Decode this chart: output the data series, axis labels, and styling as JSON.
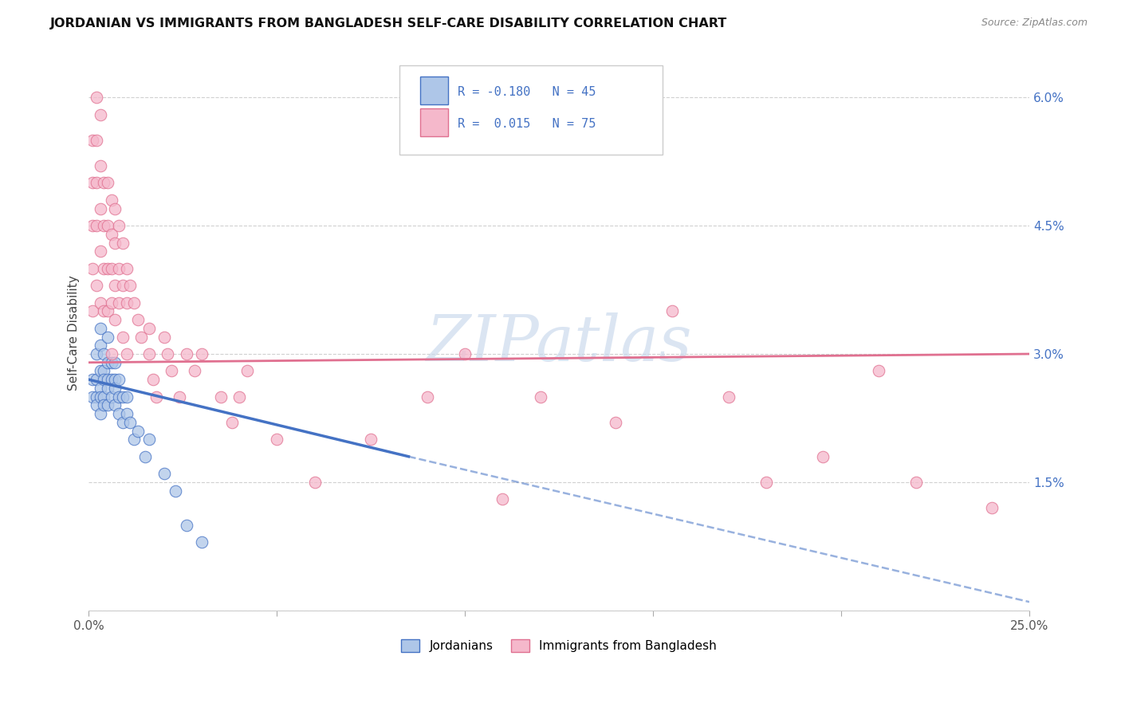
{
  "title": "JORDANIAN VS IMMIGRANTS FROM BANGLADESH SELF-CARE DISABILITY CORRELATION CHART",
  "source": "Source: ZipAtlas.com",
  "ylabel": "Self-Care Disability",
  "watermark": "ZIPatlas",
  "legend": {
    "jordan": {
      "R": -0.18,
      "N": 45,
      "color": "#aec6e8",
      "line_color": "#4472c4"
    },
    "bangladesh": {
      "R": 0.015,
      "N": 75,
      "color": "#f5b8cb",
      "line_color": "#e07090"
    }
  },
  "right_yticks": [
    0.0,
    0.015,
    0.03,
    0.045,
    0.06
  ],
  "right_ytick_labels": [
    "",
    "1.5%",
    "3.0%",
    "4.5%",
    "6.0%"
  ],
  "xlim": [
    0.0,
    0.25
  ],
  "ylim": [
    0.0,
    0.065
  ],
  "jordanians_x": [
    0.001,
    0.001,
    0.002,
    0.002,
    0.002,
    0.002,
    0.003,
    0.003,
    0.003,
    0.003,
    0.003,
    0.003,
    0.004,
    0.004,
    0.004,
    0.004,
    0.004,
    0.005,
    0.005,
    0.005,
    0.005,
    0.005,
    0.006,
    0.006,
    0.006,
    0.007,
    0.007,
    0.007,
    0.007,
    0.008,
    0.008,
    0.008,
    0.009,
    0.009,
    0.01,
    0.01,
    0.011,
    0.012,
    0.013,
    0.015,
    0.016,
    0.02,
    0.023,
    0.026,
    0.03
  ],
  "jordanians_y": [
    0.027,
    0.025,
    0.03,
    0.027,
    0.025,
    0.024,
    0.033,
    0.031,
    0.028,
    0.026,
    0.025,
    0.023,
    0.03,
    0.028,
    0.027,
    0.025,
    0.024,
    0.032,
    0.029,
    0.027,
    0.026,
    0.024,
    0.029,
    0.027,
    0.025,
    0.029,
    0.027,
    0.026,
    0.024,
    0.027,
    0.025,
    0.023,
    0.025,
    0.022,
    0.025,
    0.023,
    0.022,
    0.02,
    0.021,
    0.018,
    0.02,
    0.016,
    0.014,
    0.01,
    0.008
  ],
  "bangladesh_x": [
    0.001,
    0.001,
    0.001,
    0.001,
    0.001,
    0.002,
    0.002,
    0.002,
    0.002,
    0.002,
    0.003,
    0.003,
    0.003,
    0.003,
    0.003,
    0.004,
    0.004,
    0.004,
    0.004,
    0.005,
    0.005,
    0.005,
    0.005,
    0.006,
    0.006,
    0.006,
    0.006,
    0.006,
    0.007,
    0.007,
    0.007,
    0.007,
    0.008,
    0.008,
    0.008,
    0.009,
    0.009,
    0.009,
    0.01,
    0.01,
    0.01,
    0.011,
    0.012,
    0.013,
    0.014,
    0.016,
    0.016,
    0.017,
    0.018,
    0.02,
    0.021,
    0.022,
    0.024,
    0.026,
    0.028,
    0.03,
    0.035,
    0.038,
    0.04,
    0.042,
    0.05,
    0.06,
    0.075,
    0.09,
    0.1,
    0.11,
    0.12,
    0.14,
    0.155,
    0.17,
    0.18,
    0.195,
    0.21,
    0.22,
    0.24
  ],
  "bangladesh_y": [
    0.055,
    0.05,
    0.045,
    0.04,
    0.035,
    0.06,
    0.055,
    0.05,
    0.045,
    0.038,
    0.058,
    0.052,
    0.047,
    0.042,
    0.036,
    0.05,
    0.045,
    0.04,
    0.035,
    0.05,
    0.045,
    0.04,
    0.035,
    0.048,
    0.044,
    0.04,
    0.036,
    0.03,
    0.047,
    0.043,
    0.038,
    0.034,
    0.045,
    0.04,
    0.036,
    0.043,
    0.038,
    0.032,
    0.04,
    0.036,
    0.03,
    0.038,
    0.036,
    0.034,
    0.032,
    0.033,
    0.03,
    0.027,
    0.025,
    0.032,
    0.03,
    0.028,
    0.025,
    0.03,
    0.028,
    0.03,
    0.025,
    0.022,
    0.025,
    0.028,
    0.02,
    0.015,
    0.02,
    0.025,
    0.03,
    0.013,
    0.025,
    0.022,
    0.035,
    0.025,
    0.015,
    0.018,
    0.028,
    0.015,
    0.012
  ],
  "jordan_trend_x0": 0.0,
  "jordan_trend_x_solid_end": 0.085,
  "jordan_trend_x_dash_end": 0.25,
  "jordan_trend_y_start": 0.027,
  "jordan_trend_y_solid_end": 0.018,
  "jordan_trend_y_dash_end": 0.001,
  "bang_trend_y_start": 0.029,
  "bang_trend_y_end": 0.03
}
